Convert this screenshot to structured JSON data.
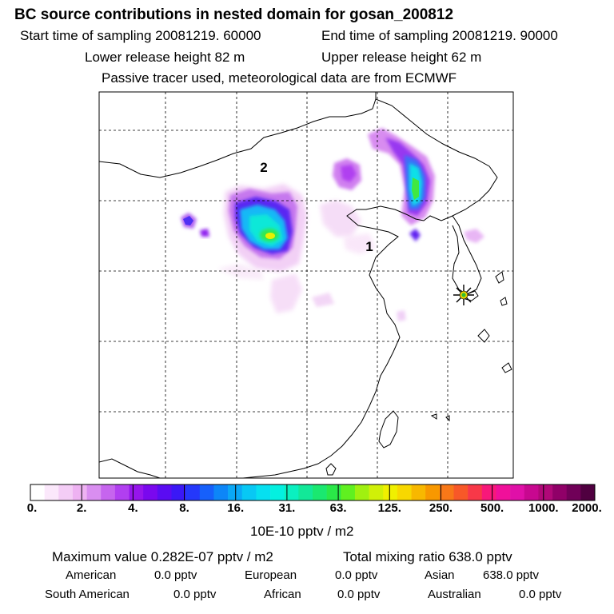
{
  "title": "BC  source contributions in nested domain for gosan_200812",
  "header": {
    "start_time": "Start time of sampling 20081219. 60000",
    "end_time": "End time of sampling 20081219. 90000",
    "lower_height": "Lower release height   82 m",
    "upper_height": "Upper release height   62 m",
    "tracer_note": "Passive tracer used, meteorological data are from ECMWF"
  },
  "map": {
    "region_labels": [
      "2",
      "1"
    ],
    "receptor": "Gosan station marker"
  },
  "colorbar": {
    "tick_labels": [
      "0.",
      "2.",
      "4.",
      "8.",
      "16.",
      "31.",
      "63.",
      "125.",
      "250.",
      "500.",
      "1000.",
      "2000."
    ],
    "colors": [
      "#ffffff",
      "#fbe8fb",
      "#f4cdf6",
      "#eeb2f2",
      "#d98ef0",
      "#c665ee",
      "#b13ff0",
      "#9615ec",
      "#7a08ee",
      "#5a0cf2",
      "#3a18f6",
      "#2438fb",
      "#1660fb",
      "#0d86f8",
      "#0aa8f6",
      "#08c8f4",
      "#06e0f0",
      "#04f0e0",
      "#0af0c0",
      "#12e898",
      "#1ae870",
      "#2ae848",
      "#60f020",
      "#a0f010",
      "#d0f008",
      "#f0f000",
      "#f8d800",
      "#f8b800",
      "#f89800",
      "#f87818",
      "#f85828",
      "#f83848",
      "#f8187a",
      "#f0109a",
      "#e010a8",
      "#c80890",
      "#b00878",
      "#900068",
      "#700058",
      "#500040"
    ],
    "unit": "10E-10 pptv / m2"
  },
  "stats": {
    "max_value": "Maximum value  0.282E-07 pptv / m2",
    "total_mixing": "Total mixing ratio     638.0 pptv",
    "american_label": "American",
    "american_value": "0.0 pptv",
    "european_label": "European",
    "european_value": "0.0 pptv",
    "asian_label": "Asian",
    "asian_value": "638.0 pptv",
    "south_american_label": "South American",
    "south_american_value": "0.0 pptv",
    "african_label": "African",
    "african_value": "0.0 pptv",
    "australian_label": "Australian",
    "australian_value": "0.0 pptv"
  }
}
